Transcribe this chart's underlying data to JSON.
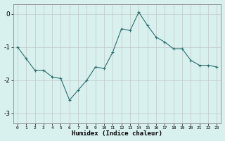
{
  "x": [
    0,
    1,
    2,
    3,
    4,
    5,
    6,
    7,
    8,
    9,
    10,
    11,
    12,
    13,
    14,
    15,
    16,
    17,
    18,
    19,
    20,
    21,
    22,
    23
  ],
  "y": [
    -1.0,
    -1.35,
    -1.7,
    -1.7,
    -1.9,
    -1.95,
    -2.6,
    -2.3,
    -2.0,
    -1.6,
    -1.65,
    -1.15,
    -0.45,
    -0.5,
    0.05,
    -0.35,
    -0.7,
    -0.85,
    -1.05,
    -1.05,
    -1.4,
    -1.55,
    -1.55,
    -1.6
  ],
  "xlim": [
    -0.5,
    23.5
  ],
  "ylim": [
    -3.3,
    0.3
  ],
  "yticks": [
    0,
    -1,
    -2,
    -3
  ],
  "xticks": [
    0,
    1,
    2,
    3,
    4,
    5,
    6,
    7,
    8,
    9,
    10,
    11,
    12,
    13,
    14,
    15,
    16,
    17,
    18,
    19,
    20,
    21,
    22,
    23
  ],
  "xlabel": "Humidex (Indice chaleur)",
  "line_color": "#2d6e6e",
  "bg_color": "#d8f0ee",
  "grid_color": "#c0c8c8",
  "title": ""
}
